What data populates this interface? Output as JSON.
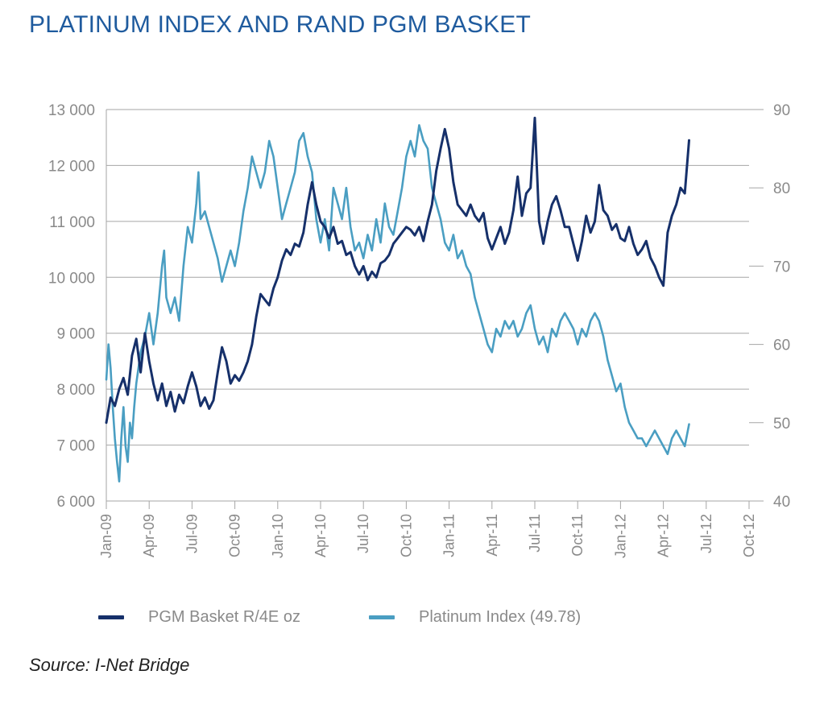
{
  "title": "PLATINUM INDEX AND RAND PGM BASKET",
  "source": "Source: I-Net Bridge",
  "chart_data": {
    "type": "line",
    "x_labels": [
      "Jan-09",
      "Apr-09",
      "Jul-09",
      "Oct-09",
      "Jan-10",
      "Apr-10",
      "Jul-10",
      "Oct-10",
      "Jan-11",
      "Apr-11",
      "Jul-11",
      "Oct-11",
      "Jan-12",
      "Apr-12",
      "Jul-12",
      "Oct-12"
    ],
    "y_left": {
      "ticks": [
        "6 000",
        "7 000",
        "8 000",
        "9 000",
        "10 000",
        "11 000",
        "12 000",
        "13 000"
      ],
      "min": 6000,
      "max": 13000
    },
    "y_right": {
      "ticks": [
        "40",
        "50",
        "60",
        "70",
        "80",
        "90"
      ],
      "min": 40,
      "max": 90
    },
    "grid": true,
    "legend_position": "bottom",
    "series": [
      {
        "name": "PGM Basket R/4E oz",
        "axis": "left",
        "color": "#16306a",
        "points": [
          [
            0,
            7400
          ],
          [
            0.1,
            7850
          ],
          [
            0.2,
            7700
          ],
          [
            0.3,
            8000
          ],
          [
            0.4,
            8200
          ],
          [
            0.5,
            7900
          ],
          [
            0.6,
            8600
          ],
          [
            0.7,
            8900
          ],
          [
            0.8,
            8300
          ],
          [
            0.9,
            9000
          ],
          [
            1.0,
            8500
          ],
          [
            1.1,
            8100
          ],
          [
            1.2,
            7800
          ],
          [
            1.3,
            8100
          ],
          [
            1.4,
            7700
          ],
          [
            1.5,
            7950
          ],
          [
            1.6,
            7600
          ],
          [
            1.7,
            7900
          ],
          [
            1.8,
            7750
          ],
          [
            1.9,
            8050
          ],
          [
            2.0,
            8300
          ],
          [
            2.1,
            8050
          ],
          [
            2.2,
            7700
          ],
          [
            2.3,
            7850
          ],
          [
            2.4,
            7650
          ],
          [
            2.5,
            7800
          ],
          [
            2.6,
            8300
          ],
          [
            2.7,
            8750
          ],
          [
            2.8,
            8500
          ],
          [
            2.9,
            8100
          ],
          [
            3.0,
            8250
          ],
          [
            3.1,
            8150
          ],
          [
            3.2,
            8300
          ],
          [
            3.3,
            8500
          ],
          [
            3.4,
            8800
          ],
          [
            3.5,
            9300
          ],
          [
            3.6,
            9700
          ],
          [
            3.7,
            9600
          ],
          [
            3.8,
            9500
          ],
          [
            3.9,
            9800
          ],
          [
            4.0,
            10000
          ],
          [
            4.1,
            10300
          ],
          [
            4.2,
            10500
          ],
          [
            4.3,
            10400
          ],
          [
            4.4,
            10600
          ],
          [
            4.5,
            10550
          ],
          [
            4.6,
            10800
          ],
          [
            4.7,
            11300
          ],
          [
            4.8,
            11700
          ],
          [
            4.9,
            11300
          ],
          [
            5.0,
            11000
          ],
          [
            5.1,
            10900
          ],
          [
            5.2,
            10700
          ],
          [
            5.3,
            10900
          ],
          [
            5.4,
            10600
          ],
          [
            5.5,
            10650
          ],
          [
            5.6,
            10400
          ],
          [
            5.7,
            10450
          ],
          [
            5.8,
            10200
          ],
          [
            5.9,
            10050
          ],
          [
            6.0,
            10200
          ],
          [
            6.1,
            9950
          ],
          [
            6.2,
            10100
          ],
          [
            6.3,
            10000
          ],
          [
            6.4,
            10250
          ],
          [
            6.5,
            10300
          ],
          [
            6.6,
            10400
          ],
          [
            6.7,
            10600
          ],
          [
            6.8,
            10700
          ],
          [
            6.9,
            10800
          ],
          [
            7.0,
            10900
          ],
          [
            7.1,
            10850
          ],
          [
            7.2,
            10750
          ],
          [
            7.3,
            10900
          ],
          [
            7.4,
            10650
          ],
          [
            7.5,
            11000
          ],
          [
            7.6,
            11300
          ],
          [
            7.7,
            11900
          ],
          [
            7.8,
            12300
          ],
          [
            7.9,
            12650
          ],
          [
            8.0,
            12300
          ],
          [
            8.1,
            11700
          ],
          [
            8.2,
            11300
          ],
          [
            8.3,
            11200
          ],
          [
            8.4,
            11100
          ],
          [
            8.5,
            11300
          ],
          [
            8.6,
            11100
          ],
          [
            8.7,
            11000
          ],
          [
            8.8,
            11150
          ],
          [
            8.9,
            10700
          ],
          [
            9.0,
            10500
          ],
          [
            9.1,
            10700
          ],
          [
            9.2,
            10900
          ],
          [
            9.3,
            10600
          ],
          [
            9.4,
            10800
          ],
          [
            9.5,
            11200
          ],
          [
            9.6,
            11800
          ],
          [
            9.7,
            11100
          ],
          [
            9.8,
            11500
          ],
          [
            9.9,
            11600
          ],
          [
            10.0,
            12850
          ],
          [
            10.1,
            11000
          ],
          [
            10.2,
            10600
          ],
          [
            10.3,
            11000
          ],
          [
            10.4,
            11300
          ],
          [
            10.5,
            11450
          ],
          [
            10.6,
            11200
          ],
          [
            10.7,
            10900
          ],
          [
            10.8,
            10900
          ],
          [
            10.9,
            10600
          ],
          [
            11.0,
            10300
          ],
          [
            11.1,
            10650
          ],
          [
            11.2,
            11100
          ],
          [
            11.3,
            10800
          ],
          [
            11.4,
            11000
          ],
          [
            11.5,
            11650
          ],
          [
            11.6,
            11200
          ],
          [
            11.7,
            11100
          ],
          [
            11.8,
            10850
          ],
          [
            11.9,
            10950
          ],
          [
            12.0,
            10700
          ],
          [
            12.1,
            10650
          ],
          [
            12.2,
            10900
          ],
          [
            12.3,
            10600
          ],
          [
            12.4,
            10400
          ],
          [
            12.5,
            10500
          ],
          [
            12.6,
            10650
          ],
          [
            12.7,
            10350
          ],
          [
            12.8,
            10200
          ],
          [
            12.9,
            10000
          ],
          [
            13.0,
            9850
          ],
          [
            13.1,
            10800
          ],
          [
            13.2,
            11100
          ],
          [
            13.3,
            11300
          ],
          [
            13.4,
            11600
          ],
          [
            13.5,
            11500
          ],
          [
            13.6,
            12450
          ]
        ]
      },
      {
        "name": "Platinum Index (49.78)",
        "axis": "right",
        "color": "#4a9ec2",
        "points": [
          [
            0,
            55.5
          ],
          [
            0.05,
            60
          ],
          [
            0.1,
            57
          ],
          [
            0.15,
            52
          ],
          [
            0.2,
            48
          ],
          [
            0.25,
            45
          ],
          [
            0.3,
            42.5
          ],
          [
            0.35,
            48
          ],
          [
            0.4,
            52
          ],
          [
            0.45,
            47
          ],
          [
            0.5,
            45
          ],
          [
            0.55,
            50
          ],
          [
            0.6,
            48
          ],
          [
            0.65,
            52
          ],
          [
            0.7,
            55
          ],
          [
            0.8,
            59
          ],
          [
            0.9,
            61
          ],
          [
            1.0,
            64
          ],
          [
            1.1,
            60
          ],
          [
            1.2,
            64
          ],
          [
            1.3,
            70
          ],
          [
            1.35,
            72
          ],
          [
            1.4,
            66
          ],
          [
            1.5,
            64
          ],
          [
            1.6,
            66
          ],
          [
            1.7,
            63
          ],
          [
            1.8,
            70
          ],
          [
            1.9,
            75
          ],
          [
            2.0,
            73
          ],
          [
            2.1,
            78
          ],
          [
            2.15,
            82
          ],
          [
            2.2,
            76
          ],
          [
            2.3,
            77
          ],
          [
            2.4,
            75
          ],
          [
            2.5,
            73
          ],
          [
            2.6,
            71
          ],
          [
            2.7,
            68
          ],
          [
            2.8,
            70
          ],
          [
            2.9,
            72
          ],
          [
            3.0,
            70
          ],
          [
            3.1,
            73
          ],
          [
            3.2,
            77
          ],
          [
            3.3,
            80
          ],
          [
            3.4,
            84
          ],
          [
            3.5,
            82
          ],
          [
            3.6,
            80
          ],
          [
            3.7,
            82
          ],
          [
            3.8,
            86
          ],
          [
            3.9,
            84
          ],
          [
            4.0,
            80
          ],
          [
            4.1,
            76
          ],
          [
            4.2,
            78
          ],
          [
            4.3,
            80
          ],
          [
            4.4,
            82
          ],
          [
            4.5,
            86
          ],
          [
            4.6,
            87
          ],
          [
            4.7,
            84
          ],
          [
            4.8,
            82
          ],
          [
            4.9,
            76
          ],
          [
            5.0,
            73
          ],
          [
            5.1,
            76
          ],
          [
            5.2,
            72
          ],
          [
            5.3,
            80
          ],
          [
            5.4,
            78
          ],
          [
            5.5,
            76
          ],
          [
            5.6,
            80
          ],
          [
            5.7,
            75
          ],
          [
            5.8,
            72
          ],
          [
            5.9,
            73
          ],
          [
            6.0,
            71
          ],
          [
            6.1,
            74
          ],
          [
            6.2,
            72
          ],
          [
            6.3,
            76
          ],
          [
            6.4,
            73
          ],
          [
            6.5,
            78
          ],
          [
            6.6,
            75
          ],
          [
            6.7,
            74
          ],
          [
            6.8,
            77
          ],
          [
            6.9,
            80
          ],
          [
            7.0,
            84
          ],
          [
            7.1,
            86
          ],
          [
            7.2,
            84
          ],
          [
            7.3,
            88
          ],
          [
            7.4,
            86
          ],
          [
            7.5,
            85
          ],
          [
            7.6,
            80
          ],
          [
            7.7,
            78
          ],
          [
            7.8,
            76
          ],
          [
            7.9,
            73
          ],
          [
            8.0,
            72
          ],
          [
            8.1,
            74
          ],
          [
            8.2,
            71
          ],
          [
            8.3,
            72
          ],
          [
            8.4,
            70
          ],
          [
            8.5,
            69
          ],
          [
            8.6,
            66
          ],
          [
            8.7,
            64
          ],
          [
            8.8,
            62
          ],
          [
            8.9,
            60
          ],
          [
            9.0,
            59
          ],
          [
            9.1,
            62
          ],
          [
            9.2,
            61
          ],
          [
            9.3,
            63
          ],
          [
            9.4,
            62
          ],
          [
            9.5,
            63
          ],
          [
            9.6,
            61
          ],
          [
            9.7,
            62
          ],
          [
            9.8,
            64
          ],
          [
            9.9,
            65
          ],
          [
            10.0,
            62
          ],
          [
            10.1,
            60
          ],
          [
            10.2,
            61
          ],
          [
            10.3,
            59
          ],
          [
            10.4,
            62
          ],
          [
            10.5,
            61
          ],
          [
            10.6,
            63
          ],
          [
            10.7,
            64
          ],
          [
            10.8,
            63
          ],
          [
            10.9,
            62
          ],
          [
            11.0,
            60
          ],
          [
            11.1,
            62
          ],
          [
            11.2,
            61
          ],
          [
            11.3,
            63
          ],
          [
            11.4,
            64
          ],
          [
            11.5,
            63
          ],
          [
            11.6,
            61
          ],
          [
            11.7,
            58
          ],
          [
            11.8,
            56
          ],
          [
            11.9,
            54
          ],
          [
            12.0,
            55
          ],
          [
            12.1,
            52
          ],
          [
            12.2,
            50
          ],
          [
            12.3,
            49
          ],
          [
            12.4,
            48
          ],
          [
            12.5,
            48
          ],
          [
            12.6,
            47
          ],
          [
            12.7,
            48
          ],
          [
            12.8,
            49
          ],
          [
            12.9,
            48
          ],
          [
            13.0,
            47
          ],
          [
            13.1,
            46
          ],
          [
            13.2,
            48
          ],
          [
            13.3,
            49
          ],
          [
            13.4,
            48
          ],
          [
            13.5,
            47
          ],
          [
            13.6,
            49.8
          ]
        ]
      }
    ]
  }
}
